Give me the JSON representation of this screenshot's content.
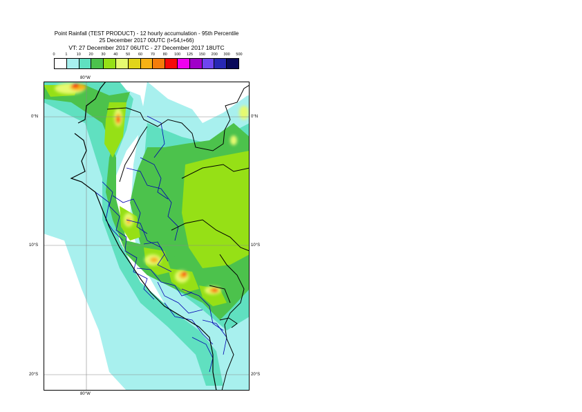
{
  "title": {
    "line1": "Point Rainfall (TEST PRODUCT) - 12 hourly accumulation - 95th Percentile",
    "line2": "25 December 2017 00UTC (t+54,t+66)",
    "line3": "VT: 27 December 2017 06UTC - 27 December 2017 18UTC"
  },
  "legend": {
    "thresholds": [
      "0",
      "1",
      "10",
      "20",
      "30",
      "40",
      "50",
      "60",
      "70",
      "80",
      "100",
      "125",
      "150",
      "200",
      "300",
      "500"
    ],
    "colors": [
      "#ffffff",
      "#a8f0ee",
      "#60e0c0",
      "#4cc24c",
      "#96e016",
      "#e6fa70",
      "#e1d41a",
      "#f7b214",
      "#f57d0a",
      "#f50a0a",
      "#f000f0",
      "#a000c8",
      "#6e46f0",
      "#2828b4",
      "#0a0a5a"
    ]
  },
  "map": {
    "lat_labels": {
      "equator_left": "0°N",
      "equator_right": "0°N",
      "s10_left": "10°S",
      "s10_right": "10°S",
      "s20_left": "20°S",
      "s20_right": "20°S"
    },
    "lon_labels": {
      "top": "80°W",
      "bottom": "80°W"
    },
    "colors": {
      "ocean": "#ffffff",
      "light": "#a8f0ee",
      "mid": "#60e0c0",
      "green": "#4cc24c",
      "lime": "#96e016",
      "yellow": "#e6fa70",
      "orange": "#f7b214",
      "red": "#f50a0a",
      "coast": "#000000",
      "regions": "#0000b0",
      "grid": "#888888"
    }
  }
}
